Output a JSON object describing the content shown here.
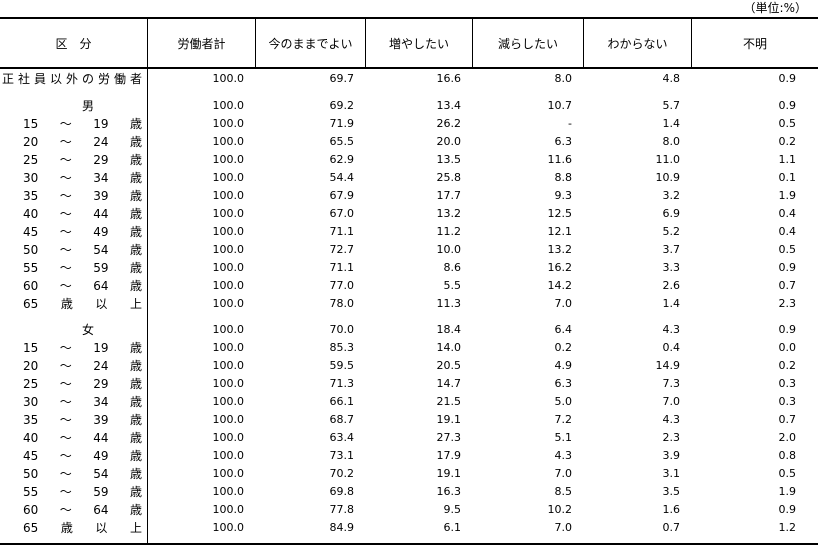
{
  "unit_label": "（単位:%）",
  "colors": {
    "background": "#ffffff",
    "text": "#000000",
    "border": "#000000"
  },
  "table": {
    "columns": [
      {
        "key": "kubun",
        "label": "区　分"
      },
      {
        "key": "total",
        "label": "労働者計"
      },
      {
        "key": "keep",
        "label": "今のままでよい"
      },
      {
        "key": "increase",
        "label": "増やしたい"
      },
      {
        "key": "decrease",
        "label": "減らしたい"
      },
      {
        "key": "dontknow",
        "label": "わからない"
      },
      {
        "key": "unknown",
        "label": "不明"
      }
    ],
    "rows": [
      {
        "type": "total",
        "label": "正社員以外の労働者",
        "values": [
          "100.0",
          "69.7",
          "16.6",
          "8.0",
          "4.8",
          "0.9"
        ]
      },
      {
        "type": "spacer"
      },
      {
        "type": "gender",
        "label": "男",
        "values": [
          "100.0",
          "69.2",
          "13.4",
          "10.7",
          "5.7",
          "0.9"
        ]
      },
      {
        "type": "age",
        "parts": [
          "15",
          "～",
          "19",
          "歳"
        ],
        "values": [
          "100.0",
          "71.9",
          "26.2",
          "-",
          "1.4",
          "0.5"
        ]
      },
      {
        "type": "age",
        "parts": [
          "20",
          "～",
          "24",
          "歳"
        ],
        "values": [
          "100.0",
          "65.5",
          "20.0",
          "6.3",
          "8.0",
          "0.2"
        ]
      },
      {
        "type": "age",
        "parts": [
          "25",
          "～",
          "29",
          "歳"
        ],
        "values": [
          "100.0",
          "62.9",
          "13.5",
          "11.6",
          "11.0",
          "1.1"
        ]
      },
      {
        "type": "age",
        "parts": [
          "30",
          "～",
          "34",
          "歳"
        ],
        "values": [
          "100.0",
          "54.4",
          "25.8",
          "8.8",
          "10.9",
          "0.1"
        ]
      },
      {
        "type": "age",
        "parts": [
          "35",
          "～",
          "39",
          "歳"
        ],
        "values": [
          "100.0",
          "67.9",
          "17.7",
          "9.3",
          "3.2",
          "1.9"
        ]
      },
      {
        "type": "age",
        "parts": [
          "40",
          "～",
          "44",
          "歳"
        ],
        "values": [
          "100.0",
          "67.0",
          "13.2",
          "12.5",
          "6.9",
          "0.4"
        ]
      },
      {
        "type": "age",
        "parts": [
          "45",
          "～",
          "49",
          "歳"
        ],
        "values": [
          "100.0",
          "71.1",
          "11.2",
          "12.1",
          "5.2",
          "0.4"
        ]
      },
      {
        "type": "age",
        "parts": [
          "50",
          "～",
          "54",
          "歳"
        ],
        "values": [
          "100.0",
          "72.7",
          "10.0",
          "13.2",
          "3.7",
          "0.5"
        ]
      },
      {
        "type": "age",
        "parts": [
          "55",
          "～",
          "59",
          "歳"
        ],
        "values": [
          "100.0",
          "71.1",
          "8.6",
          "16.2",
          "3.3",
          "0.9"
        ]
      },
      {
        "type": "age",
        "parts": [
          "60",
          "～",
          "64",
          "歳"
        ],
        "values": [
          "100.0",
          "77.0",
          "5.5",
          "14.2",
          "2.6",
          "0.7"
        ]
      },
      {
        "type": "age",
        "parts": [
          "65",
          "歳",
          "以",
          "上"
        ],
        "values": [
          "100.0",
          "78.0",
          "11.3",
          "7.0",
          "1.4",
          "2.3"
        ]
      },
      {
        "type": "spacer"
      },
      {
        "type": "gender",
        "label": "女",
        "values": [
          "100.0",
          "70.0",
          "18.4",
          "6.4",
          "4.3",
          "0.9"
        ]
      },
      {
        "type": "age",
        "parts": [
          "15",
          "～",
          "19",
          "歳"
        ],
        "values": [
          "100.0",
          "85.3",
          "14.0",
          "0.2",
          "0.4",
          "0.0"
        ]
      },
      {
        "type": "age",
        "parts": [
          "20",
          "～",
          "24",
          "歳"
        ],
        "values": [
          "100.0",
          "59.5",
          "20.5",
          "4.9",
          "14.9",
          "0.2"
        ]
      },
      {
        "type": "age",
        "parts": [
          "25",
          "～",
          "29",
          "歳"
        ],
        "values": [
          "100.0",
          "71.3",
          "14.7",
          "6.3",
          "7.3",
          "0.3"
        ]
      },
      {
        "type": "age",
        "parts": [
          "30",
          "～",
          "34",
          "歳"
        ],
        "values": [
          "100.0",
          "66.1",
          "21.5",
          "5.0",
          "7.0",
          "0.3"
        ]
      },
      {
        "type": "age",
        "parts": [
          "35",
          "～",
          "39",
          "歳"
        ],
        "values": [
          "100.0",
          "68.7",
          "19.1",
          "7.2",
          "4.3",
          "0.7"
        ]
      },
      {
        "type": "age",
        "parts": [
          "40",
          "～",
          "44",
          "歳"
        ],
        "values": [
          "100.0",
          "63.4",
          "27.3",
          "5.1",
          "2.3",
          "2.0"
        ]
      },
      {
        "type": "age",
        "parts": [
          "45",
          "～",
          "49",
          "歳"
        ],
        "values": [
          "100.0",
          "73.1",
          "17.9",
          "4.3",
          "3.9",
          "0.8"
        ]
      },
      {
        "type": "age",
        "parts": [
          "50",
          "～",
          "54",
          "歳"
        ],
        "values": [
          "100.0",
          "70.2",
          "19.1",
          "7.0",
          "3.1",
          "0.5"
        ]
      },
      {
        "type": "age",
        "parts": [
          "55",
          "～",
          "59",
          "歳"
        ],
        "values": [
          "100.0",
          "69.8",
          "16.3",
          "8.5",
          "3.5",
          "1.9"
        ]
      },
      {
        "type": "age",
        "parts": [
          "60",
          "～",
          "64",
          "歳"
        ],
        "values": [
          "100.0",
          "77.8",
          "9.5",
          "10.2",
          "1.6",
          "0.9"
        ]
      },
      {
        "type": "age",
        "parts": [
          "65",
          "歳",
          "以",
          "上"
        ],
        "values": [
          "100.0",
          "84.9",
          "6.1",
          "7.0",
          "0.7",
          "1.2"
        ]
      }
    ]
  }
}
